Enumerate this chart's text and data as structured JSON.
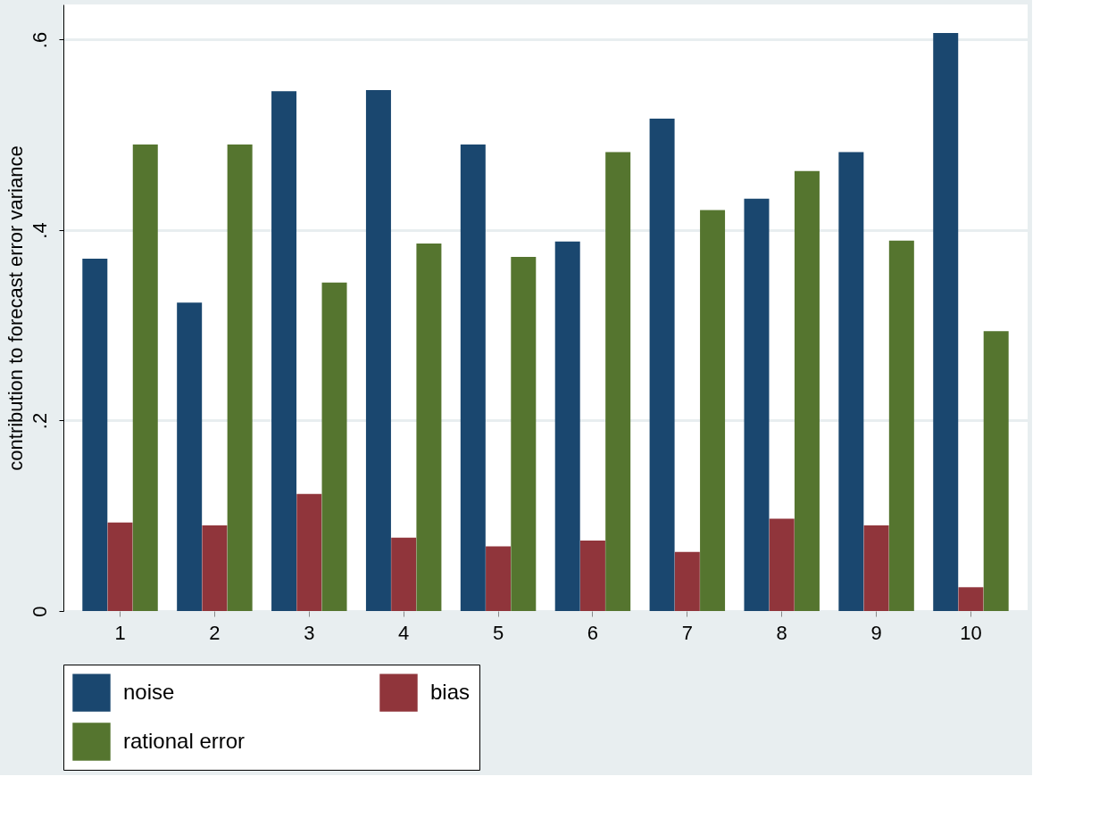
{
  "chart_data": {
    "type": "bar",
    "ylabel": "contribution to forecast error variance",
    "categories": [
      "1",
      "2",
      "3",
      "4",
      "5",
      "6",
      "7",
      "8",
      "9",
      "10"
    ],
    "series": [
      {
        "name": "noise",
        "color": "#1a476f",
        "values": [
          0.37,
          0.324,
          0.546,
          0.547,
          0.49,
          0.388,
          0.517,
          0.433,
          0.482,
          0.607
        ]
      },
      {
        "name": "bias",
        "color": "#90353b",
        "values": [
          0.093,
          0.09,
          0.123,
          0.077,
          0.068,
          0.074,
          0.062,
          0.097,
          0.09,
          0.025
        ]
      },
      {
        "name": "rational error",
        "color": "#55752f",
        "values": [
          0.49,
          0.49,
          0.345,
          0.386,
          0.372,
          0.482,
          0.421,
          0.462,
          0.389,
          0.294
        ]
      }
    ],
    "ylim": [
      0,
      0.637
    ],
    "yticks": [
      0,
      {
        "value": 0.2,
        "label": ".2"
      },
      {
        "value": 0.4,
        "label": ".4"
      },
      {
        "value": 0.6,
        "label": ".6"
      }
    ],
    "grid": "y",
    "legend": "bottom"
  }
}
